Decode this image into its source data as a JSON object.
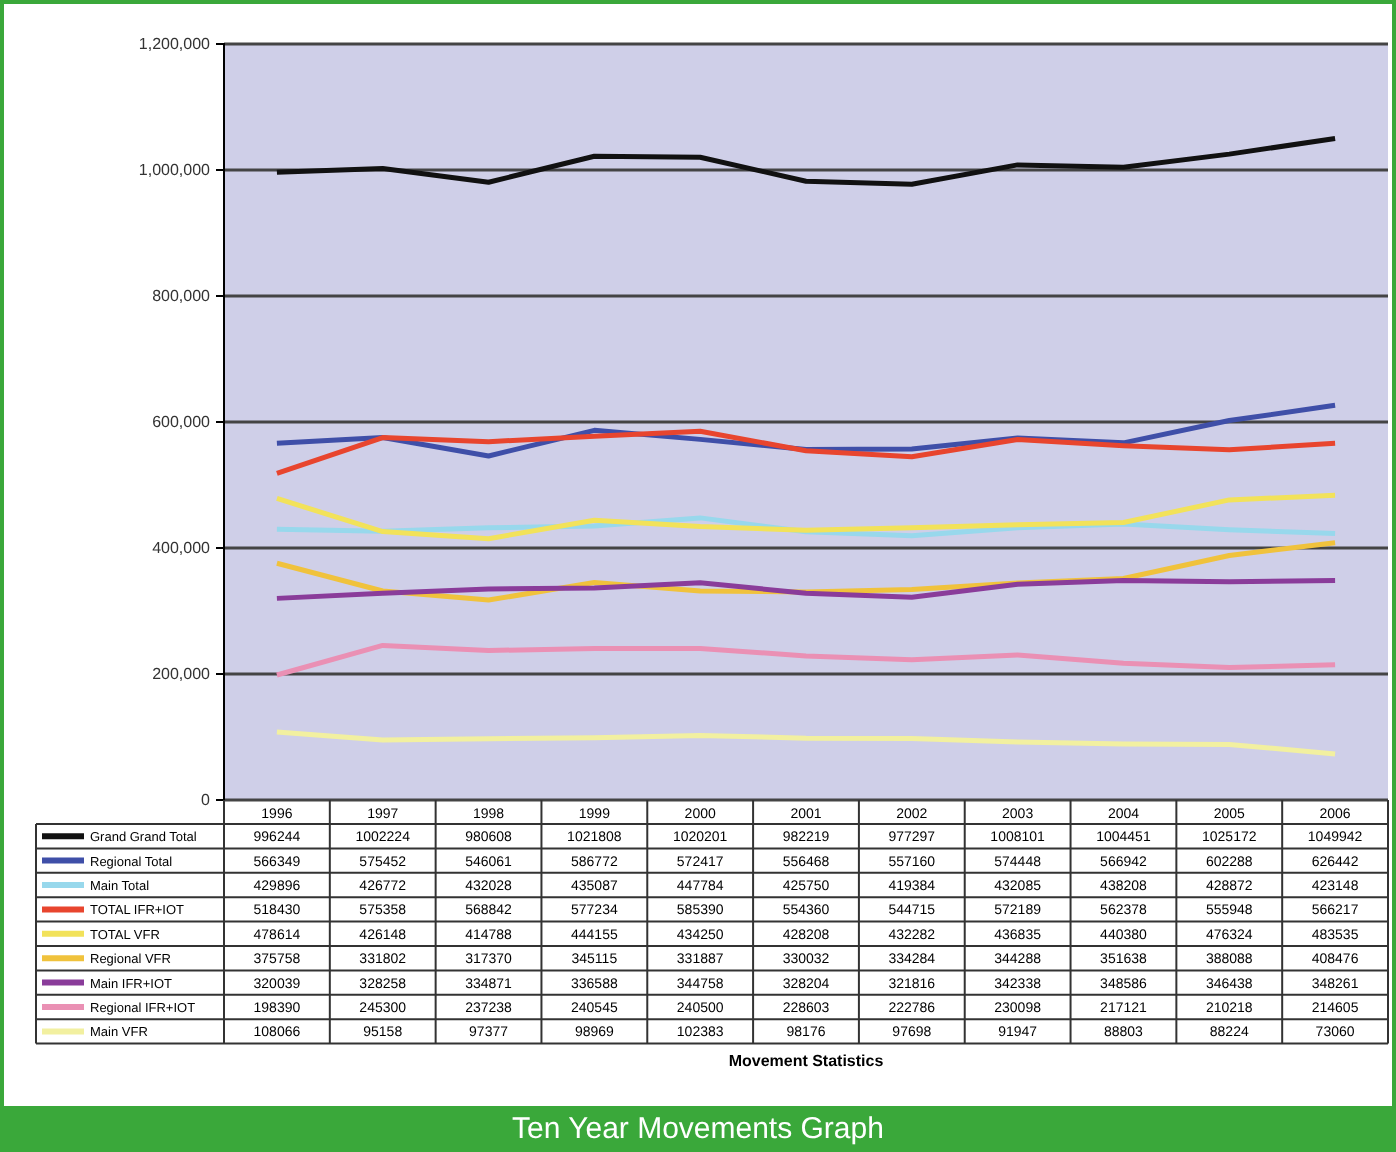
{
  "chart_data": {
    "type": "line",
    "title": "Ten Year Movements Graph",
    "annotations": [
      "Movement Statistics"
    ],
    "categories": [
      "1996",
      "1997",
      "1998",
      "1999",
      "2000",
      "2001",
      "2002",
      "2003",
      "2004",
      "2005",
      "2006"
    ],
    "ylim": [
      0,
      1200000
    ],
    "yticks": [
      {
        "value": 0,
        "label": "0"
      },
      {
        "value": 200000,
        "label": "200,000"
      },
      {
        "value": 400000,
        "label": "400,000"
      },
      {
        "value": 600000,
        "label": "600,000"
      },
      {
        "value": 800000,
        "label": "800,000"
      },
      {
        "value": 1000000,
        "label": "1,000,000"
      },
      {
        "value": 1200000,
        "label": "1,200,000"
      }
    ],
    "grid": "y",
    "legend": "bottom",
    "data_labels": true,
    "marker": "none",
    "series": [
      {
        "name": "Grand Grand Total",
        "color": "#111111",
        "values": [
          996244,
          1002224,
          980608,
          1021808,
          1020201,
          982219,
          977297,
          1008101,
          1004451,
          1025172,
          1049942
        ]
      },
      {
        "name": "Regional Total",
        "color": "#3f4fa8",
        "values": [
          566349,
          575452,
          546061,
          586772,
          572417,
          556468,
          557160,
          574448,
          566942,
          602288,
          626442
        ]
      },
      {
        "name": "Main Total",
        "color": "#98d8ec",
        "values": [
          429896,
          426772,
          432028,
          435087,
          447784,
          425750,
          419384,
          432085,
          438208,
          428872,
          423148
        ]
      },
      {
        "name": "TOTAL IFR+IOT",
        "color": "#e8452e",
        "values": [
          518430,
          575358,
          568842,
          577234,
          585390,
          554360,
          544715,
          572189,
          562378,
          555948,
          566217
        ]
      },
      {
        "name": "TOTAL VFR",
        "color": "#f2e25a",
        "values": [
          478614,
          426148,
          414788,
          444155,
          434250,
          428208,
          432282,
          436835,
          440380,
          476324,
          483535
        ]
      },
      {
        "name": "Regional VFR",
        "color": "#f0c23c",
        "values": [
          375758,
          331802,
          317370,
          345115,
          331887,
          330032,
          334284,
          344288,
          351638,
          388088,
          408476
        ]
      },
      {
        "name": "Main IFR+IOT",
        "color": "#8a3c9a",
        "values": [
          320039,
          328258,
          334871,
          336588,
          344758,
          328204,
          321816,
          342338,
          348586,
          346438,
          348261
        ]
      },
      {
        "name": "Regional IFR+IOT",
        "color": "#ea90b4",
        "values": [
          198390,
          245300,
          237238,
          240545,
          240500,
          228603,
          222786,
          230098,
          217121,
          210218,
          214605
        ]
      },
      {
        "name": "Main VFR",
        "color": "#f2f0a0",
        "values": [
          108066,
          95158,
          97377,
          98969,
          102383,
          98176,
          97698,
          91947,
          88803,
          88224,
          73060
        ]
      }
    ]
  }
}
